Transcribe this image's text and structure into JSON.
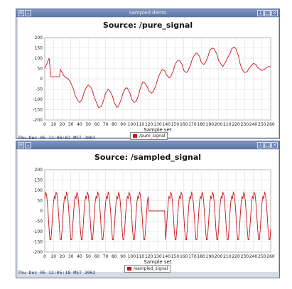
{
  "windows": [
    {
      "window_title": "sampled demo",
      "plot_title": "Source: /pure_signal",
      "legend": "/pure_signal",
      "timestamp": "Thu Dec 05 12:06:02 MST 2002"
    },
    {
      "window_title": "",
      "plot_title": "Source: /sampled_signal",
      "legend": "/sampled_signal",
      "timestamp": "Thu Dec 05 12:05:18 MST 2002"
    }
  ],
  "colors": {
    "series": "#c8141c",
    "grid": "#d9d9d9"
  },
  "chart_data": [
    {
      "type": "line",
      "title": "Source: /pure_signal",
      "xlabel": "Sample set",
      "ylabel": "",
      "xlim": [
        0,
        260
      ],
      "ylim": [
        -200,
        200
      ],
      "xticks": [
        0,
        10,
        20,
        30,
        40,
        50,
        60,
        70,
        80,
        90,
        100,
        110,
        120,
        130,
        140,
        150,
        160,
        170,
        180,
        190,
        200,
        210,
        220,
        230,
        240,
        250,
        260
      ],
      "yticks": [
        -200,
        -150,
        -100,
        -50,
        0,
        50,
        100,
        150,
        200
      ],
      "grid": true,
      "legend_position": "bottom",
      "series": [
        {
          "name": "/pure_signal",
          "x": [
            0,
            3,
            5,
            7,
            10,
            12,
            15,
            17,
            18,
            20,
            22,
            25,
            27,
            30,
            33,
            35,
            38,
            40,
            43,
            45,
            48,
            50,
            53,
            55,
            57,
            60,
            62,
            65,
            68,
            70,
            73,
            75,
            78,
            80,
            83,
            85,
            88,
            90,
            93,
            95,
            98,
            100,
            103,
            105,
            108,
            110,
            113,
            115,
            118,
            120,
            123,
            125,
            128,
            130,
            133,
            135,
            138,
            140,
            143,
            145,
            148,
            150,
            153,
            155,
            158,
            160,
            163,
            165,
            168,
            170,
            173,
            175,
            178,
            180,
            183,
            185,
            188,
            190,
            193,
            195,
            198,
            200,
            203,
            205,
            208,
            210,
            213,
            215,
            218,
            220,
            223,
            225,
            228,
            230,
            233,
            235,
            238,
            240,
            243,
            245,
            248,
            250,
            253,
            255,
            258,
            260
          ],
          "y": [
            50,
            80,
            100,
            10,
            10,
            10,
            10,
            10,
            45,
            30,
            15,
            5,
            0,
            -20,
            -50,
            -80,
            -105,
            -115,
            -100,
            -70,
            -40,
            -30,
            -40,
            -60,
            -90,
            -120,
            -140,
            -135,
            -100,
            -70,
            -50,
            -60,
            -85,
            -115,
            -140,
            -130,
            -100,
            -70,
            -45,
            -45,
            -70,
            -100,
            -115,
            -110,
            -80,
            -45,
            -15,
            -20,
            -40,
            -60,
            -70,
            -60,
            -30,
            0,
            30,
            45,
            40,
            20,
            5,
            10,
            40,
            70,
            90,
            90,
            70,
            40,
            30,
            40,
            70,
            100,
            120,
            125,
            110,
            80,
            70,
            80,
            110,
            140,
            150,
            145,
            120,
            90,
            70,
            60,
            80,
            100,
            120,
            145,
            155,
            145,
            110,
            70,
            40,
            30,
            35,
            50,
            65,
            75,
            70,
            55,
            45,
            40,
            45,
            55,
            60,
            58
          ]
        }
      ]
    },
    {
      "type": "line",
      "title": "Source: /sampled_signal",
      "xlabel": "Sample set",
      "ylabel": "",
      "xlim": [
        0,
        260
      ],
      "ylim": [
        -200,
        200
      ],
      "xticks": [
        0,
        10,
        20,
        30,
        40,
        50,
        60,
        70,
        80,
        90,
        100,
        110,
        120,
        130,
        140,
        150,
        160,
        170,
        180,
        190,
        200,
        210,
        220,
        230,
        240,
        250,
        260
      ],
      "yticks": [
        -200,
        -150,
        -100,
        -50,
        0,
        50,
        100,
        150,
        200
      ],
      "grid": true,
      "legend_position": "bottom",
      "series": [
        {
          "name": "/sampled_signal",
          "periodic": {
            "x_start": 0,
            "x_end": 260,
            "period": 12,
            "shape_y": [
              60,
              90,
              80,
              40,
              -20,
              -90,
              -140,
              -140,
              -90,
              -20,
              40,
              70
            ],
            "flat_segment": {
              "x_start": 120,
              "x_end": 138,
              "y": 0
            }
          }
        }
      ]
    }
  ]
}
